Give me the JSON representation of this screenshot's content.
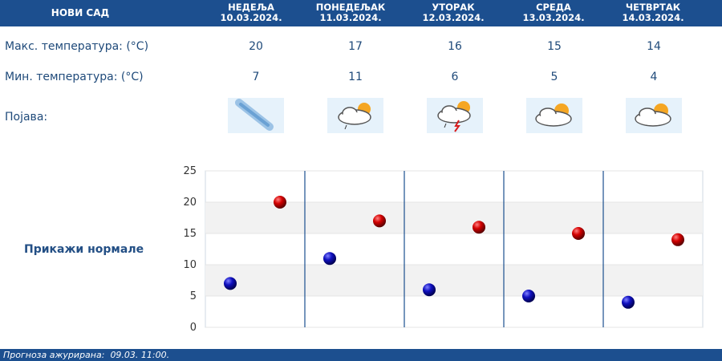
{
  "header": {
    "city": "НОВИ САД",
    "days": [
      {
        "name": "НЕДЕЉА",
        "date": "10.03.2024."
      },
      {
        "name": "ПОНЕДЕЉАК",
        "date": "11.03.2024."
      },
      {
        "name": "УТОРАК",
        "date": "12.03.2024."
      },
      {
        "name": "СРЕДА",
        "date": "13.03.2024."
      },
      {
        "name": "ЧЕТВРТАК",
        "date": "14.03.2024."
      }
    ]
  },
  "rows": {
    "max_label": "Макс. температура: (°C)",
    "min_label": "Мин. температура: (°C)",
    "phenomenon_label": "Појава:"
  },
  "icons": [
    "snow-shower-icon",
    "partly-cloudy-light-rain-icon",
    "partly-cloudy-thunderstorm-icon",
    "partly-cloudy-icon",
    "partly-cloudy-icon"
  ],
  "normals_link": "Прикажи нормале",
  "colors": {
    "header_bg": "#1c4f8f",
    "max_marker": "#cc0000",
    "min_marker": "#0000aa",
    "divider": "#1c4f8f"
  },
  "chart_data": {
    "type": "scatter",
    "categories": [
      "10.03.2024.",
      "11.03.2024.",
      "12.03.2024.",
      "13.03.2024.",
      "14.03.2024."
    ],
    "series": [
      {
        "values": [
          20,
          17,
          16,
          15,
          14
        ]
      },
      {
        "values": [
          7,
          11,
          6,
          5,
          4
        ]
      }
    ],
    "yticks": [
      0,
      5,
      10,
      15,
      20,
      25
    ],
    "ylim": [
      0,
      25
    ],
    "grid": true
  },
  "footer": {
    "label": "Прогноза ажурирана:",
    "time": "09.03. 11:00."
  }
}
